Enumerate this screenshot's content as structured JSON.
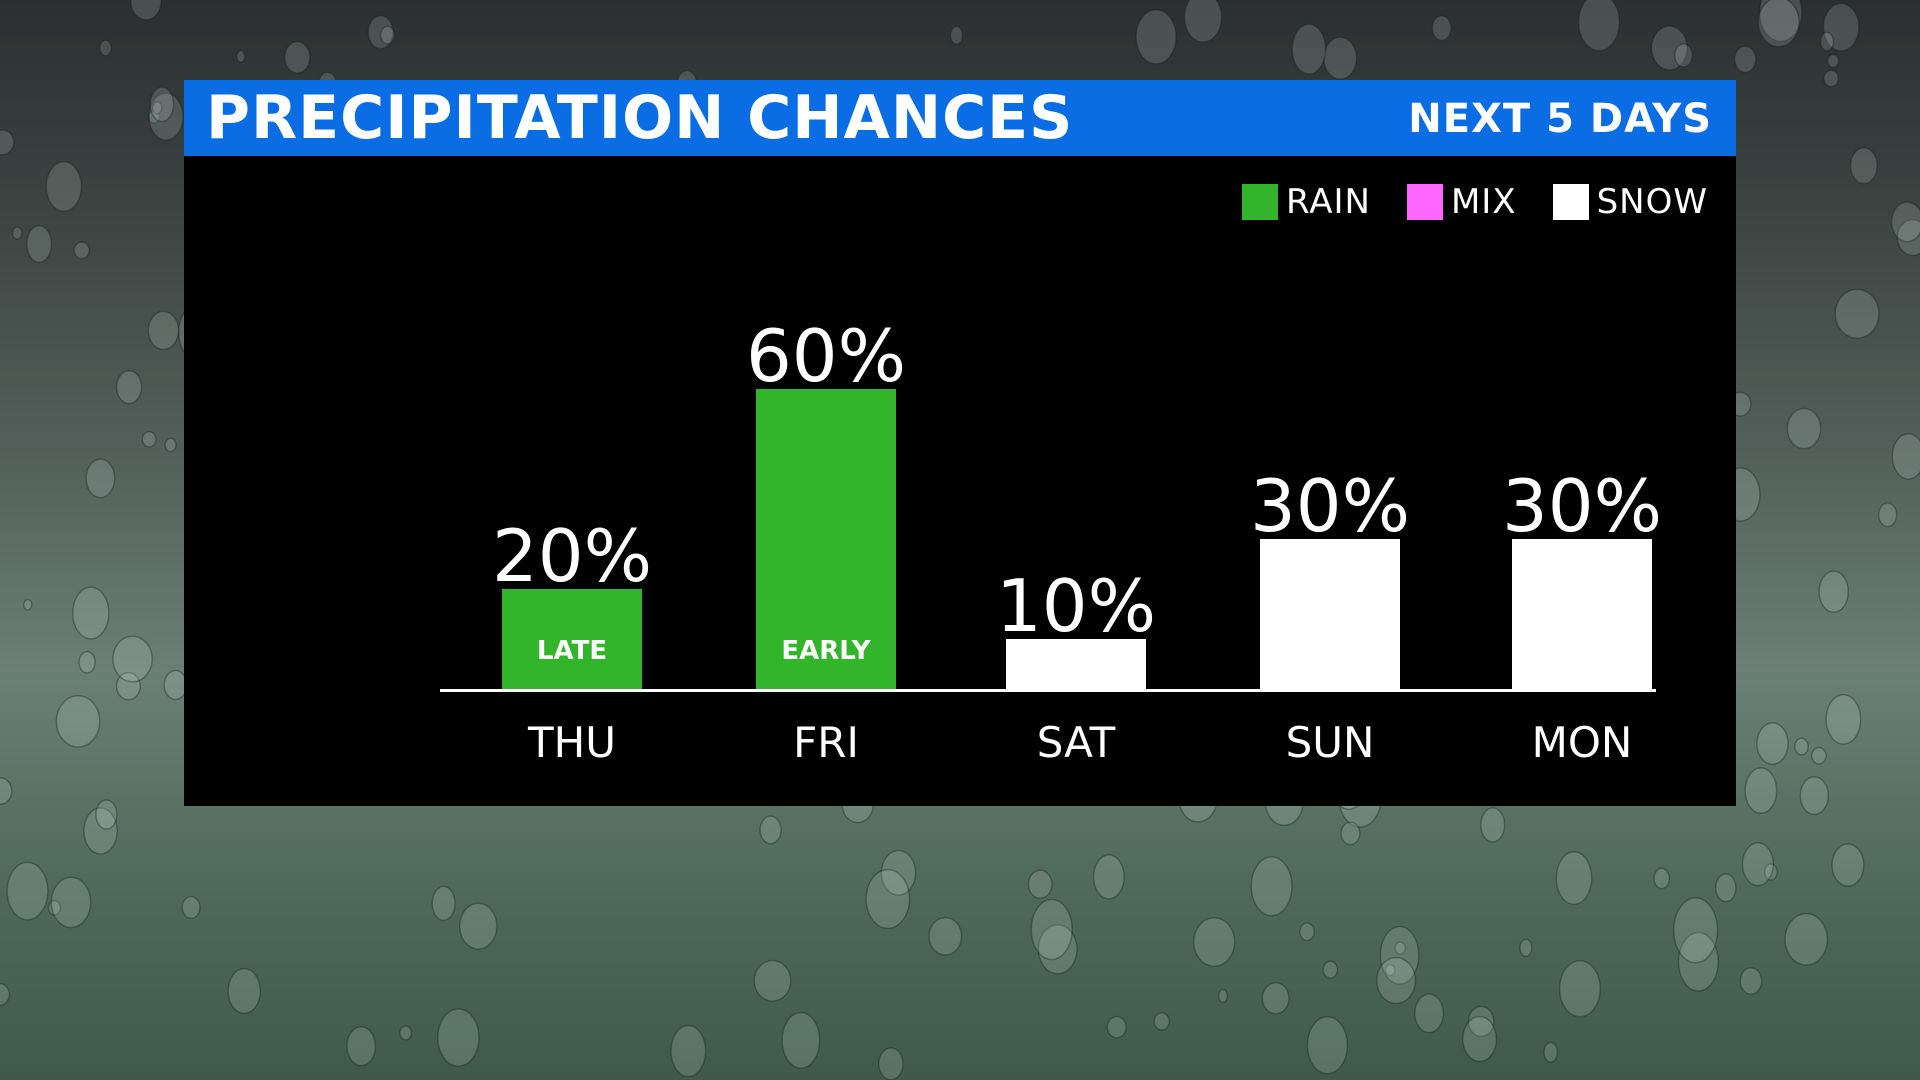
{
  "header": {
    "title": "PRECIPITATION CHANCES",
    "subtitle": "NEXT 5 DAYS"
  },
  "legend": [
    {
      "label": "RAIN",
      "color": "#33b52b"
    },
    {
      "label": "MIX",
      "color": "#ff66ff"
    },
    {
      "label": "SNOW",
      "color": "#ffffff"
    }
  ],
  "chart_data": {
    "type": "bar",
    "categories": [
      "THU",
      "FRI",
      "SAT",
      "SUN",
      "MON"
    ],
    "values": [
      20,
      60,
      10,
      30,
      30
    ],
    "value_labels": [
      "20%",
      "60%",
      "10%",
      "30%",
      "30%"
    ],
    "precip_types": [
      "RAIN",
      "RAIN",
      "SNOW",
      "SNOW",
      "SNOW"
    ],
    "bar_notes": [
      "LATE",
      "EARLY",
      "",
      "",
      ""
    ],
    "ylim": [
      0,
      100
    ],
    "grid": false,
    "legend_position": "top-right"
  }
}
